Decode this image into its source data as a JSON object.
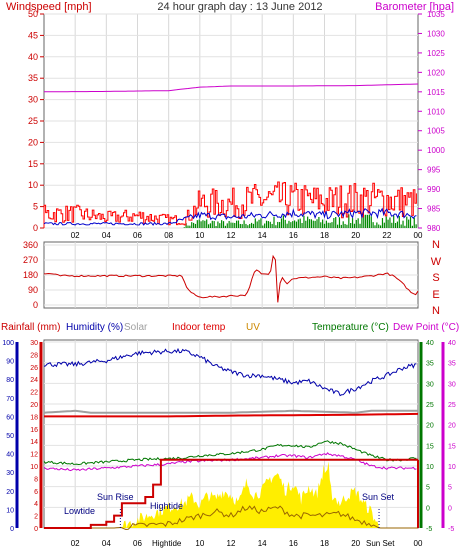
{
  "header": {
    "left": "Windspeed [mph]",
    "center": "24 hour graph day : 13 June 2012",
    "right": "Barometer [hpa]"
  },
  "colors": {
    "wind_gust": "#ff0000",
    "wind_avg": "#0000cc",
    "wind_green": "#008800",
    "barometer": "#cc00cc",
    "winddir": "#cc0000",
    "rain": "#cc0000",
    "humidity": "#0000aa",
    "solar": "#a0a0a0",
    "indoor": "#dd0000",
    "uv": "#cc8800",
    "temperature": "#007700",
    "dewpoint": "#cc00cc",
    "sun_fill": "#ffee00",
    "sun_line": "#996600"
  },
  "x_ticks": [
    "02",
    "04",
    "06",
    "08",
    "10",
    "12",
    "14",
    "16",
    "18",
    "20",
    "22",
    "00"
  ],
  "compass": [
    "N",
    "W",
    "S",
    "E",
    "N"
  ],
  "bottom_header": {
    "rain": "Rainfall (mm)",
    "humidity": "Humidity (%)",
    "solar": "Solar",
    "indoor": "Indoor temp",
    "uv": "UV",
    "temperature": "Temperature (°C)",
    "dewpoint": "Dew Point (°C)"
  },
  "annotations": {
    "sunrise": "Sun Rise",
    "sunset": "Sun Set",
    "lowtide": "Lowtide",
    "hightide": "Hightide",
    "hightide_tick": "Hightide",
    "sunset_tick": "Sun Set"
  },
  "chart_data": [
    {
      "type": "line",
      "title": "24 hour graph day : 13 June 2012",
      "xlabel": "",
      "x_ticks": [
        "02",
        "04",
        "06",
        "08",
        "10",
        "12",
        "14",
        "16",
        "18",
        "20",
        "22",
        "00"
      ],
      "ylabel_left": "Windspeed [mph]",
      "ylim_left": [
        0,
        50
      ],
      "y_ticks_left": [
        0,
        5,
        10,
        15,
        20,
        25,
        30,
        35,
        40,
        45,
        50
      ],
      "ylabel_right": "Barometer [hpa]",
      "ylim_right": [
        980,
        1035
      ],
      "y_ticks_right": [
        980,
        985,
        990,
        995,
        1000,
        1005,
        1010,
        1015,
        1020,
        1025,
        1030,
        1035
      ],
      "grid": true,
      "series": [
        {
          "name": "Barometer [hpa]",
          "axis": "right",
          "hours": [
            0,
            4,
            8,
            10,
            12,
            16,
            20,
            24
          ],
          "values": [
            1015.0,
            1015.1,
            1015.3,
            1016.2,
            1016.5,
            1016.5,
            1016.6,
            1017.0
          ]
        },
        {
          "axis": "left",
          "hours": [
            0,
            2,
            4,
            6,
            8,
            9,
            10,
            12,
            14,
            16,
            18,
            20,
            22,
            24
          ],
          "values": [
            3.5,
            3.5,
            2.5,
            3,
            2,
            2,
            6,
            6,
            7,
            7,
            6.5,
            7,
            7,
            6
          ]
        },
        {
          "axis": "left",
          "hours": [
            0,
            8,
            9,
            10,
            12,
            14,
            16,
            18,
            20,
            22,
            24
          ],
          "values": [
            1,
            1,
            2,
            3,
            2.5,
            3,
            3.5,
            3,
            3.5,
            3.5,
            3
          ]
        },
        {
          "axis": "left",
          "hours": [
            9,
            10,
            12,
            14,
            16,
            18,
            20,
            22,
            24
          ],
          "values": [
            0.6,
            1.5,
            1,
            1.5,
            2,
            1.5,
            2,
            2,
            1.5
          ]
        }
      ]
    },
    {
      "type": "line",
      "title": "",
      "x_ticks": [
        "02",
        "04",
        "06",
        "08",
        "10",
        "12",
        "14",
        "16",
        "18",
        "20",
        "22",
        "00"
      ],
      "ylim": [
        0,
        360
      ],
      "y_ticks": [
        0,
        90,
        180,
        270,
        360
      ],
      "right_labels": [
        "N",
        "W",
        "S",
        "E",
        "N"
      ],
      "grid": true,
      "series": [
        {
          "hours": [
            0,
            0.4,
            1,
            3,
            5,
            7,
            8.9,
            9.1,
            9.5,
            10,
            10.5,
            11,
            12,
            13,
            13.5,
            13.7,
            14,
            14.3,
            14.5,
            14.8,
            15,
            15.2,
            15.6,
            16,
            17,
            18,
            19,
            20,
            21,
            22,
            22.5,
            23,
            23.5,
            23.8,
            24
          ],
          "values": [
            185,
            190,
            175,
            175,
            175,
            175,
            175,
            110,
            70,
            45,
            50,
            48,
            55,
            60,
            195,
            210,
            180,
            190,
            175,
            360,
            20,
            175,
            130,
            160,
            165,
            170,
            160,
            165,
            175,
            190,
            170,
            130,
            80,
            60,
            85
          ]
        }
      ]
    },
    {
      "type": "line",
      "title": "",
      "x_ticks": [
        "02",
        "04",
        "06",
        "08",
        "10",
        "12",
        "14",
        "16",
        "18",
        "20",
        "22",
        "00"
      ],
      "y_ticks_rain": [
        0,
        2,
        4,
        6,
        8,
        10,
        12,
        14,
        16,
        18,
        20,
        22,
        24,
        26,
        28,
        30
      ],
      "ylim_rain": [
        0,
        30
      ],
      "y_ticks_humidity": [
        0,
        10,
        20,
        30,
        40,
        50,
        60,
        70,
        80,
        90,
        100
      ],
      "ylim_humidity": [
        0,
        100
      ],
      "y_ticks_temp": [
        -5,
        0,
        5,
        10,
        15,
        20,
        25,
        30,
        35,
        40
      ],
      "ylim_temp": [
        -5,
        40
      ],
      "grid": true,
      "series": [
        {
          "name": "Humidity (%)",
          "axis": "humidity",
          "hours": [
            0,
            2,
            4,
            6,
            8,
            9,
            10,
            11,
            12,
            13,
            14,
            15,
            16,
            17,
            18,
            19,
            20,
            21,
            22,
            23,
            24
          ],
          "values": [
            88,
            88,
            90,
            94,
            95,
            95,
            92,
            87,
            84,
            82,
            82,
            80,
            78,
            79,
            75,
            72,
            75,
            79,
            82,
            86,
            88
          ]
        },
        {
          "name": "Solar",
          "axis": "humidity",
          "hours": [
            0,
            2,
            3,
            4,
            8,
            9,
            12,
            16,
            20,
            21,
            24
          ],
          "values": [
            62,
            63,
            62,
            62,
            62,
            62,
            62,
            63,
            62,
            63,
            63
          ]
        },
        {
          "name": "Indoor temp",
          "axis": "temp",
          "hours": [
            0,
            4,
            8,
            12,
            16,
            20,
            24
          ],
          "values": [
            22,
            22,
            22,
            22.2,
            22.3,
            22.4,
            22.6
          ]
        },
        {
          "name": "Temperature (°C)",
          "axis": "temp",
          "hours": [
            0,
            2,
            4,
            6,
            8,
            9,
            10,
            12,
            14,
            15,
            16,
            17,
            18,
            19,
            20,
            21,
            22,
            23,
            24
          ],
          "values": [
            11,
            10.5,
            11,
            11.5,
            11.8,
            12,
            12.5,
            13,
            14,
            15,
            15,
            14.5,
            16,
            15.5,
            14,
            12.5,
            11.5,
            11.5,
            12
          ]
        },
        {
          "name": "Dew Point (°C)",
          "axis": "temp",
          "hours": [
            0,
            2,
            4,
            6,
            8,
            9,
            10,
            12,
            14,
            15,
            16,
            17,
            18,
            19,
            20,
            21,
            22,
            23,
            24
          ],
          "values": [
            9.5,
            9,
            9.5,
            10,
            10.5,
            11,
            11.2,
            11.5,
            12,
            12.5,
            12.5,
            12,
            13,
            12.5,
            11.5,
            10,
            9.5,
            9.5,
            9.5
          ]
        },
        {
          "name": "Rainfall (mm)",
          "axis": "rain",
          "hours": [
            0,
            2,
            3,
            4,
            4.5,
            5,
            6.5,
            7,
            7.5,
            24
          ],
          "values": [
            0,
            0,
            0.5,
            1,
            2,
            4,
            5,
            7,
            11,
            11
          ]
        },
        {
          "name": "UV",
          "axis": "temp",
          "hours": [
            0,
            4.5,
            6,
            8,
            9,
            10,
            11,
            12,
            13,
            14,
            15,
            16,
            17,
            18,
            19,
            20,
            21,
            21.5,
            24
          ],
          "values": [
            -5,
            -5,
            -4.5,
            -4,
            -3,
            -2,
            -1,
            -2,
            0,
            -1,
            0,
            -2,
            -2,
            -2,
            -1.5,
            -3,
            -4,
            -5,
            -5
          ]
        },
        {
          "axis": "temp",
          "hours": [
            0,
            4.5,
            5,
            6,
            7,
            8,
            9,
            9.5,
            10,
            10.5,
            11,
            11.5,
            12,
            12.5,
            13,
            13.5,
            14,
            14.5,
            15,
            15.5,
            16,
            16.5,
            17,
            17.5,
            18,
            18.5,
            19,
            19.5,
            20,
            20.5,
            21,
            21.5,
            24
          ],
          "values": [
            -5,
            -5,
            -4.5,
            -3,
            -1.5,
            0,
            1,
            2.5,
            0.5,
            3,
            2,
            4,
            3,
            1,
            6,
            3,
            4,
            7,
            8,
            4,
            6,
            2,
            5,
            3,
            10,
            3,
            1,
            3,
            4,
            1,
            -1,
            -5,
            -5
          ]
        }
      ],
      "annotations": [
        "Sun Rise",
        "Sun Set",
        "Lowtide",
        "Hightide",
        "Hightide",
        "Sun Set"
      ]
    }
  ]
}
